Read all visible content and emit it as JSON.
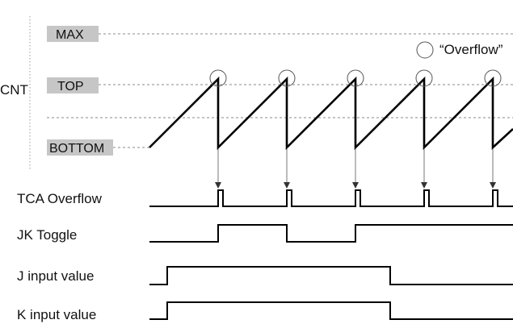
{
  "diagram": {
    "cnt_label": "CNT",
    "levels": {
      "max": "MAX",
      "top": "TOP",
      "bottom": "BOTTOM"
    },
    "legend": {
      "overflow": "“Overflow”"
    },
    "signals": [
      {
        "label": "TCA Overflow"
      },
      {
        "label": "JK Toggle"
      },
      {
        "label": "J input value"
      },
      {
        "label": "K input value"
      }
    ]
  }
}
